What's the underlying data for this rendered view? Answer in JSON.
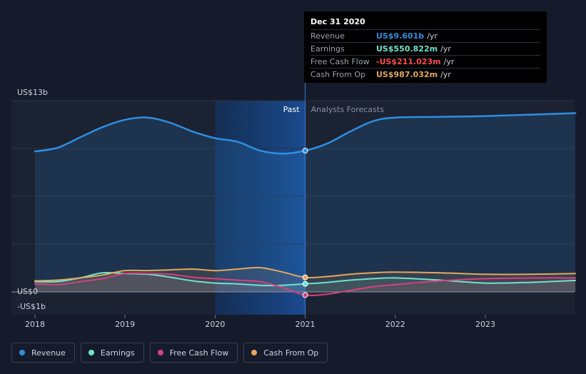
{
  "chart_data": {
    "type": "area",
    "ylim": [
      -1,
      13
    ],
    "y_tick_labels": [
      "US$13b",
      "US$0",
      "-US$1b"
    ],
    "x_tick_labels": [
      "2018",
      "2019",
      "2020",
      "2021",
      "2022",
      "2023"
    ],
    "past_label": "Past",
    "forecast_label": "Analysts Forecasts",
    "divider_x": 2021.0,
    "series": [
      {
        "name": "Revenue",
        "color": "#2f8fe0",
        "points": [
          [
            2018.0,
            9.55
          ],
          [
            2018.25,
            9.8
          ],
          [
            2018.5,
            10.5
          ],
          [
            2018.75,
            11.2
          ],
          [
            2019.0,
            11.7
          ],
          [
            2019.25,
            11.85
          ],
          [
            2019.5,
            11.5
          ],
          [
            2019.75,
            10.9
          ],
          [
            2020.0,
            10.45
          ],
          [
            2020.25,
            10.2
          ],
          [
            2020.5,
            9.6
          ],
          [
            2020.75,
            9.4
          ],
          [
            2021.0,
            9.601
          ],
          [
            2021.25,
            10.1
          ],
          [
            2021.5,
            10.9
          ],
          [
            2021.75,
            11.6
          ],
          [
            2022.0,
            11.85
          ],
          [
            2022.5,
            11.9
          ],
          [
            2023.0,
            11.95
          ],
          [
            2023.5,
            12.05
          ],
          [
            2024.0,
            12.15
          ]
        ]
      },
      {
        "name": "Earnings",
        "color": "#6de3cf",
        "points": [
          [
            2018.0,
            0.7
          ],
          [
            2018.25,
            0.7
          ],
          [
            2018.5,
            0.95
          ],
          [
            2018.75,
            1.3
          ],
          [
            2019.0,
            1.25
          ],
          [
            2019.25,
            1.2
          ],
          [
            2019.5,
            1.0
          ],
          [
            2019.75,
            0.75
          ],
          [
            2020.0,
            0.6
          ],
          [
            2020.25,
            0.55
          ],
          [
            2020.5,
            0.45
          ],
          [
            2020.75,
            0.45
          ],
          [
            2021.0,
            0.551
          ],
          [
            2021.25,
            0.65
          ],
          [
            2021.5,
            0.8
          ],
          [
            2021.75,
            0.9
          ],
          [
            2022.0,
            0.95
          ],
          [
            2022.5,
            0.8
          ],
          [
            2023.0,
            0.6
          ],
          [
            2023.5,
            0.65
          ],
          [
            2024.0,
            0.78
          ]
        ]
      },
      {
        "name": "Free Cash Flow",
        "color": "#d2427f",
        "points": [
          [
            2018.0,
            0.55
          ],
          [
            2018.25,
            0.5
          ],
          [
            2018.5,
            0.7
          ],
          [
            2018.75,
            0.9
          ],
          [
            2019.0,
            1.25
          ],
          [
            2019.25,
            1.25
          ],
          [
            2019.5,
            1.2
          ],
          [
            2019.75,
            1.0
          ],
          [
            2020.0,
            0.9
          ],
          [
            2020.25,
            0.8
          ],
          [
            2020.5,
            0.7
          ],
          [
            2020.75,
            0.3
          ],
          [
            2021.0,
            -0.211
          ],
          [
            2021.25,
            -0.15
          ],
          [
            2021.5,
            0.1
          ],
          [
            2021.75,
            0.35
          ],
          [
            2022.0,
            0.5
          ],
          [
            2022.5,
            0.75
          ],
          [
            2023.0,
            0.9
          ],
          [
            2023.5,
            0.95
          ],
          [
            2024.0,
            0.95
          ]
        ]
      },
      {
        "name": "Cash From Op",
        "color": "#e3a85d",
        "points": [
          [
            2018.0,
            0.75
          ],
          [
            2018.25,
            0.8
          ],
          [
            2018.5,
            0.95
          ],
          [
            2018.75,
            1.15
          ],
          [
            2019.0,
            1.45
          ],
          [
            2019.25,
            1.45
          ],
          [
            2019.5,
            1.5
          ],
          [
            2019.75,
            1.55
          ],
          [
            2020.0,
            1.45
          ],
          [
            2020.25,
            1.55
          ],
          [
            2020.5,
            1.65
          ],
          [
            2020.75,
            1.35
          ],
          [
            2021.0,
            0.987
          ],
          [
            2021.25,
            1.05
          ],
          [
            2021.5,
            1.2
          ],
          [
            2021.75,
            1.3
          ],
          [
            2022.0,
            1.35
          ],
          [
            2022.5,
            1.3
          ],
          [
            2023.0,
            1.2
          ],
          [
            2023.5,
            1.2
          ],
          [
            2024.0,
            1.25
          ]
        ]
      }
    ]
  },
  "tooltip": {
    "date": "Dec 31 2020",
    "rows": [
      {
        "label": "Revenue",
        "value": "US$9.601b",
        "unit": "/yr",
        "color": "#2f8fe0"
      },
      {
        "label": "Earnings",
        "value": "US$550.822m",
        "unit": "/yr",
        "color": "#6de3cf"
      },
      {
        "label": "Free Cash Flow",
        "value": "-US$211.023m",
        "unit": "/yr",
        "color": "#ff4d4d"
      },
      {
        "label": "Cash From Op",
        "value": "US$987.032m",
        "unit": "/yr",
        "color": "#e3a85d"
      }
    ]
  },
  "legend": [
    {
      "label": "Revenue",
      "color": "#2f8fe0"
    },
    {
      "label": "Earnings",
      "color": "#6de3cf"
    },
    {
      "label": "Free Cash Flow",
      "color": "#d2427f"
    },
    {
      "label": "Cash From Op",
      "color": "#e3a85d"
    }
  ]
}
